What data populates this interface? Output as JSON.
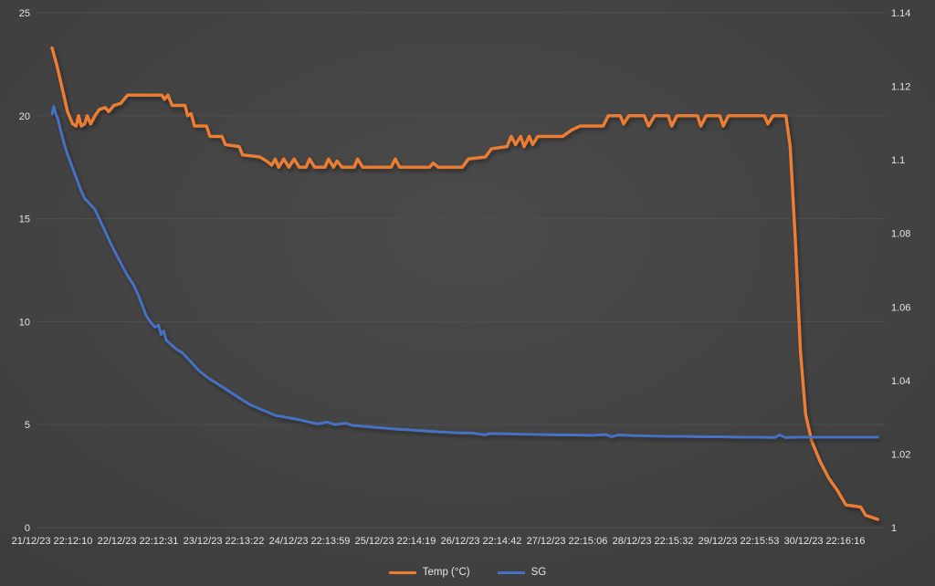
{
  "colors": {
    "background": "#414141",
    "gridline": "#4F4F4F",
    "axis_text": "#E4E4E4",
    "temp_line": "#ED7D31",
    "sg_line": "#4472C4"
  },
  "chart_data": {
    "type": "line",
    "title": "",
    "grid": true,
    "legend_position": "bottom",
    "x_axis": {
      "unit": "days_since_start",
      "range_days": [
        0,
        9.65
      ],
      "labels": [
        "21/12/23 22:12:10",
        "22/12/23 22:12:31",
        "23/12/23 22:13:22",
        "24/12/23 22:13:59",
        "25/12/23 22:14:19",
        "26/12/23 22:14:42",
        "27/12/23 22:15:06",
        "28/12/23 22:15:32",
        "29/12/23 22:15:53",
        "30/12/23 22:16:16"
      ],
      "label_positions_days": [
        0,
        1,
        2,
        3,
        4,
        5,
        6,
        7,
        8,
        9
      ]
    },
    "y_left": {
      "range": [
        0,
        25
      ],
      "ticks": [
        0,
        5,
        10,
        15,
        20,
        25
      ],
      "tick_labels": [
        "0",
        "5",
        "10",
        "15",
        "20",
        "25"
      ]
    },
    "y_right": {
      "range": [
        1,
        1.14
      ],
      "ticks": [
        1,
        1.02,
        1.04,
        1.06,
        1.08,
        1.1,
        1.12,
        1.14
      ],
      "tick_labels": [
        "1",
        "1.02",
        "1.04",
        "1.06",
        "1.08",
        "1.1",
        "1.12",
        "1.14"
      ]
    },
    "series": [
      {
        "name": "Temp (°C)",
        "axis": "left",
        "color": "#ED7D31",
        "points": [
          [
            0,
            23.3
          ],
          [
            0.06,
            22.4
          ],
          [
            0.12,
            21.3
          ],
          [
            0.18,
            20.2
          ],
          [
            0.24,
            19.6
          ],
          [
            0.28,
            19.5
          ],
          [
            0.31,
            20.0
          ],
          [
            0.34,
            19.5
          ],
          [
            0.38,
            19.6
          ],
          [
            0.41,
            20.0
          ],
          [
            0.45,
            19.6
          ],
          [
            0.5,
            20.0
          ],
          [
            0.55,
            20.3
          ],
          [
            0.62,
            20.4
          ],
          [
            0.66,
            20.2
          ],
          [
            0.72,
            20.5
          ],
          [
            0.8,
            20.6
          ],
          [
            0.88,
            21.0
          ],
          [
            1.28,
            21.0
          ],
          [
            1.31,
            20.8
          ],
          [
            1.35,
            21.0
          ],
          [
            1.4,
            20.5
          ],
          [
            1.55,
            20.5
          ],
          [
            1.58,
            20.0
          ],
          [
            1.62,
            20.1
          ],
          [
            1.66,
            19.5
          ],
          [
            1.8,
            19.5
          ],
          [
            1.84,
            19.0
          ],
          [
            1.98,
            19.0
          ],
          [
            2.02,
            18.6
          ],
          [
            2.18,
            18.5
          ],
          [
            2.22,
            18.1
          ],
          [
            2.42,
            18.0
          ],
          [
            2.5,
            17.8
          ],
          [
            2.56,
            17.6
          ],
          [
            2.6,
            17.9
          ],
          [
            2.64,
            17.5
          ],
          [
            2.7,
            17.9
          ],
          [
            2.76,
            17.5
          ],
          [
            2.82,
            17.9
          ],
          [
            2.88,
            17.5
          ],
          [
            2.96,
            17.5
          ],
          [
            3.0,
            17.9
          ],
          [
            3.06,
            17.5
          ],
          [
            3.18,
            17.5
          ],
          [
            3.22,
            17.9
          ],
          [
            3.28,
            17.5
          ],
          [
            3.32,
            17.8
          ],
          [
            3.38,
            17.5
          ],
          [
            3.52,
            17.5
          ],
          [
            3.56,
            17.9
          ],
          [
            3.62,
            17.5
          ],
          [
            3.95,
            17.5
          ],
          [
            4.0,
            17.9
          ],
          [
            4.05,
            17.5
          ],
          [
            4.4,
            17.5
          ],
          [
            4.44,
            17.7
          ],
          [
            4.5,
            17.5
          ],
          [
            4.78,
            17.5
          ],
          [
            4.85,
            17.9
          ],
          [
            5.05,
            18.0
          ],
          [
            5.12,
            18.4
          ],
          [
            5.3,
            18.5
          ],
          [
            5.35,
            19.0
          ],
          [
            5.4,
            18.6
          ],
          [
            5.46,
            19.0
          ],
          [
            5.5,
            18.5
          ],
          [
            5.56,
            19.0
          ],
          [
            5.6,
            18.6
          ],
          [
            5.66,
            19.0
          ],
          [
            5.95,
            19.0
          ],
          [
            6.05,
            19.3
          ],
          [
            6.15,
            19.5
          ],
          [
            6.42,
            19.5
          ],
          [
            6.48,
            20.0
          ],
          [
            6.62,
            20.0
          ],
          [
            6.66,
            19.6
          ],
          [
            6.72,
            20.0
          ],
          [
            6.9,
            20.0
          ],
          [
            6.95,
            19.5
          ],
          [
            7.02,
            20.0
          ],
          [
            7.18,
            20.0
          ],
          [
            7.22,
            19.5
          ],
          [
            7.28,
            20.0
          ],
          [
            7.52,
            20.0
          ],
          [
            7.56,
            19.5
          ],
          [
            7.62,
            20.0
          ],
          [
            7.78,
            20.0
          ],
          [
            7.82,
            19.5
          ],
          [
            7.88,
            20.0
          ],
          [
            8.3,
            20.0
          ],
          [
            8.34,
            19.6
          ],
          [
            8.4,
            20.0
          ],
          [
            8.55,
            20.0
          ],
          [
            8.6,
            18.5
          ],
          [
            8.66,
            14.0
          ],
          [
            8.72,
            8.5
          ],
          [
            8.78,
            5.5
          ],
          [
            8.85,
            4.2
          ],
          [
            8.95,
            3.2
          ],
          [
            9.05,
            2.4
          ],
          [
            9.15,
            1.8
          ],
          [
            9.25,
            1.1
          ],
          [
            9.42,
            1.0
          ],
          [
            9.48,
            0.6
          ],
          [
            9.62,
            0.4
          ]
        ]
      },
      {
        "name": "SG",
        "axis": "right",
        "color": "#4472C4",
        "points": [
          [
            0,
            1.1125
          ],
          [
            0.02,
            1.1145
          ],
          [
            0.045,
            1.1125
          ],
          [
            0.07,
            1.111
          ],
          [
            0.1,
            1.108
          ],
          [
            0.14,
            1.1045
          ],
          [
            0.18,
            1.1015
          ],
          [
            0.22,
            1.099
          ],
          [
            0.26,
            1.0965
          ],
          [
            0.3,
            1.094
          ],
          [
            0.34,
            1.0915
          ],
          [
            0.38,
            1.0895
          ],
          [
            0.44,
            1.088
          ],
          [
            0.5,
            1.0865
          ],
          [
            0.55,
            1.084
          ],
          [
            0.6,
            1.0815
          ],
          [
            0.66,
            1.0785
          ],
          [
            0.72,
            1.0755
          ],
          [
            0.8,
            1.072
          ],
          [
            0.88,
            1.0685
          ],
          [
            0.95,
            1.066
          ],
          [
            1.0,
            1.0635
          ],
          [
            1.05,
            1.0605
          ],
          [
            1.1,
            1.0575
          ],
          [
            1.16,
            1.0555
          ],
          [
            1.2,
            1.0545
          ],
          [
            1.24,
            1.055
          ],
          [
            1.27,
            1.0525
          ],
          [
            1.3,
            1.0535
          ],
          [
            1.33,
            1.051
          ],
          [
            1.4,
            1.0495
          ],
          [
            1.45,
            1.0485
          ],
          [
            1.52,
            1.0475
          ],
          [
            1.58,
            1.046
          ],
          [
            1.64,
            1.0445
          ],
          [
            1.72,
            1.0425
          ],
          [
            1.8,
            1.041
          ],
          [
            1.9,
            1.0395
          ],
          [
            2.0,
            1.038
          ],
          [
            2.1,
            1.0365
          ],
          [
            2.2,
            1.035
          ],
          [
            2.3,
            1.0335
          ],
          [
            2.4,
            1.0325
          ],
          [
            2.5,
            1.0315
          ],
          [
            2.6,
            1.0305
          ],
          [
            2.72,
            1.03
          ],
          [
            2.85,
            1.0295
          ],
          [
            3.0,
            1.0287
          ],
          [
            3.1,
            1.0282
          ],
          [
            3.2,
            1.0287
          ],
          [
            3.3,
            1.028
          ],
          [
            3.42,
            1.0284
          ],
          [
            3.5,
            1.0278
          ],
          [
            3.65,
            1.0275
          ],
          [
            3.8,
            1.0272
          ],
          [
            4.0,
            1.0268
          ],
          [
            4.2,
            1.0265
          ],
          [
            4.4,
            1.0262
          ],
          [
            4.55,
            1.026
          ],
          [
            4.7,
            1.0258
          ],
          [
            4.9,
            1.0257
          ],
          [
            5.05,
            1.0252
          ],
          [
            5.1,
            1.0256
          ],
          [
            5.3,
            1.0255
          ],
          [
            5.5,
            1.0254
          ],
          [
            5.7,
            1.0253
          ],
          [
            5.9,
            1.0252
          ],
          [
            6.1,
            1.0252
          ],
          [
            6.3,
            1.0251
          ],
          [
            6.45,
            1.0253
          ],
          [
            6.52,
            1.0247
          ],
          [
            6.6,
            1.0252
          ],
          [
            6.8,
            1.025
          ],
          [
            7.0,
            1.0249
          ],
          [
            7.2,
            1.0248
          ],
          [
            7.4,
            1.0248
          ],
          [
            7.6,
            1.0247
          ],
          [
            7.8,
            1.0247
          ],
          [
            8.0,
            1.0246
          ],
          [
            8.2,
            1.0246
          ],
          [
            8.42,
            1.0245
          ],
          [
            8.48,
            1.0252
          ],
          [
            8.54,
            1.0245
          ],
          [
            8.7,
            1.0246
          ],
          [
            9.0,
            1.0246
          ],
          [
            9.3,
            1.0246
          ],
          [
            9.62,
            1.0246
          ]
        ]
      }
    ]
  }
}
